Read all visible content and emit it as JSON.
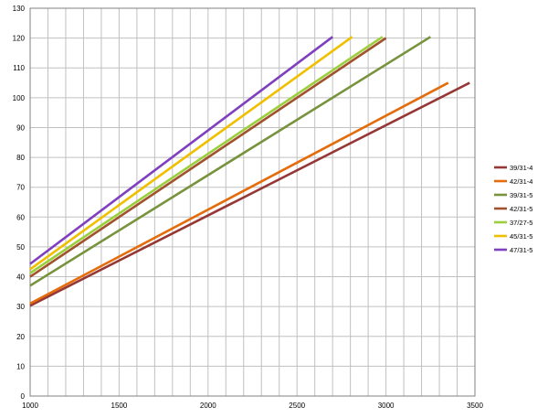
{
  "chart_data": {
    "type": "line",
    "title": "",
    "xlabel": "",
    "ylabel": "",
    "xlim": [
      1000,
      3500
    ],
    "ylim": [
      0,
      130
    ],
    "x_ticks": [
      1000,
      1500,
      2000,
      2500,
      3000,
      3500
    ],
    "y_ticks": [
      0,
      10,
      20,
      30,
      40,
      50,
      60,
      70,
      80,
      90,
      100,
      110,
      120,
      130
    ],
    "grid": true,
    "legend_position": "right",
    "series": [
      {
        "name": "39/31-4",
        "color": "#953735",
        "x": [
          1000,
          3470
        ],
        "y": [
          30.3,
          105
        ]
      },
      {
        "name": "42/31-4",
        "color": "#E46C0A",
        "x": [
          1000,
          3350
        ],
        "y": [
          31,
          105
        ]
      },
      {
        "name": "39/31-5",
        "color": "#77933C",
        "x": [
          1000,
          3250
        ],
        "y": [
          37,
          120.4
        ]
      },
      {
        "name": "42/31-5",
        "color": "#A0522D",
        "x": [
          1000,
          3000
        ],
        "y": [
          40,
          120
        ]
      },
      {
        "name": "37/27-5",
        "color": "#9BCF3C",
        "x": [
          1000,
          2980
        ],
        "y": [
          41.2,
          120.4
        ]
      },
      {
        "name": "45/31-5",
        "color": "#F0C000",
        "x": [
          1000,
          2810
        ],
        "y": [
          42.5,
          120.4
        ]
      },
      {
        "name": "47/31-5",
        "color": "#7F3FBF",
        "x": [
          1000,
          2700
        ],
        "y": [
          44.3,
          120.4
        ]
      }
    ]
  }
}
